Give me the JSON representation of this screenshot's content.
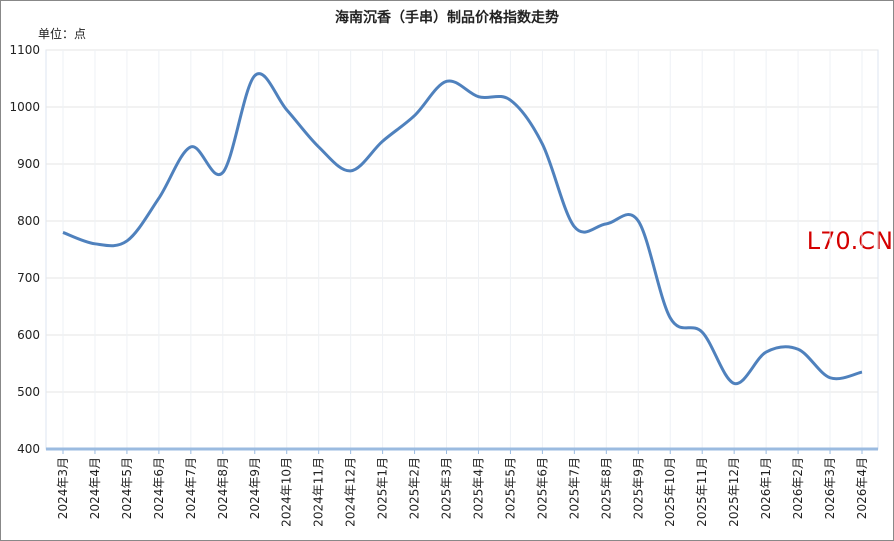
{
  "chart_data": {
    "type": "line",
    "title": "海南沉香（手串）制品价格指数走势",
    "unit": "单位：点",
    "watermark": "L70.CN",
    "categories": [
      "2024年3月",
      "2024年4月",
      "2024年5月",
      "2024年6月",
      "2024年7月",
      "2024年8月",
      "2024年9月",
      "2024年10月",
      "2024年11月",
      "2024年12月",
      "2025年1月",
      "2025年2月",
      "2025年3月",
      "2025年4月",
      "2025年5月",
      "2025年6月",
      "2025年7月",
      "2025年8月",
      "2025年9月",
      "2025年10月",
      "2025年11月",
      "2025年12月",
      "2026年1月",
      "2026年2月",
      "2026年3月",
      "2026年4月"
    ],
    "values": [
      780,
      760,
      765,
      840,
      930,
      885,
      1055,
      995,
      930,
      888,
      940,
      985,
      1045,
      1018,
      1012,
      935,
      790,
      795,
      800,
      630,
      605,
      515,
      570,
      575,
      525,
      535
    ],
    "color": "#4f81bd",
    "ylim": [
      400,
      1100
    ],
    "yticks": [
      400,
      500,
      600,
      700,
      800,
      900,
      1000,
      1100
    ],
    "grid": true
  }
}
